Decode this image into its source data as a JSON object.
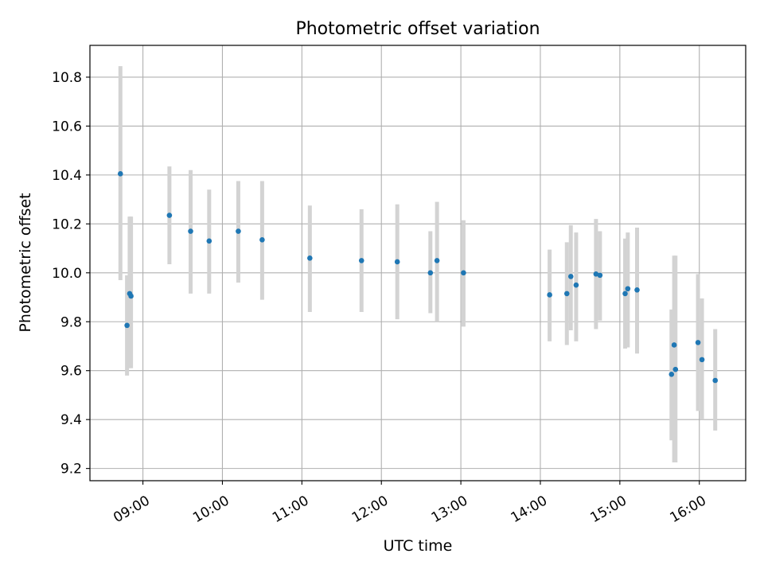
{
  "chart_data": {
    "type": "scatter",
    "title": "Photometric offset variation",
    "xlabel": "UTC time",
    "ylabel": "Photometric offset",
    "x_axis_type": "time",
    "xlim": [
      "08:20",
      "16:35"
    ],
    "ylim": [
      9.15,
      10.93
    ],
    "x_ticks": [
      "09:00",
      "10:00",
      "11:00",
      "12:00",
      "13:00",
      "14:00",
      "15:00",
      "16:00"
    ],
    "y_ticks": [
      9.2,
      9.4,
      9.6,
      9.8,
      10.0,
      10.2,
      10.4,
      10.6,
      10.8
    ],
    "grid": true,
    "legend": "none",
    "point_color": "#1f77b4",
    "errorbar_color": "#d3d3d3",
    "points": [
      {
        "x": "08:43",
        "y": 10.405,
        "low": 9.97,
        "high": 10.845
      },
      {
        "x": "08:48",
        "y": 9.785,
        "low": 9.58,
        "high": 9.99
      },
      {
        "x": "08:50",
        "y": 9.915,
        "low": 9.61,
        "high": 10.23
      },
      {
        "x": "08:51",
        "y": 9.905,
        "low": 9.61,
        "high": 10.23
      },
      {
        "x": "09:20",
        "y": 10.235,
        "low": 10.035,
        "high": 10.435
      },
      {
        "x": "09:36",
        "y": 10.17,
        "low": 9.915,
        "high": 10.42
      },
      {
        "x": "09:50",
        "y": 10.13,
        "low": 9.915,
        "high": 10.34
      },
      {
        "x": "10:12",
        "y": 10.17,
        "low": 9.96,
        "high": 10.375
      },
      {
        "x": "10:30",
        "y": 10.135,
        "low": 9.89,
        "high": 10.375
      },
      {
        "x": "11:06",
        "y": 10.06,
        "low": 9.84,
        "high": 10.275
      },
      {
        "x": "11:45",
        "y": 10.05,
        "low": 9.84,
        "high": 10.26
      },
      {
        "x": "12:12",
        "y": 10.045,
        "low": 9.81,
        "high": 10.28
      },
      {
        "x": "12:37",
        "y": 10.0,
        "low": 9.835,
        "high": 10.17
      },
      {
        "x": "12:42",
        "y": 10.05,
        "low": 9.8,
        "high": 10.29
      },
      {
        "x": "13:02",
        "y": 10.0,
        "low": 9.78,
        "high": 10.215
      },
      {
        "x": "14:07",
        "y": 9.91,
        "low": 9.72,
        "high": 10.095
      },
      {
        "x": "14:20",
        "y": 9.915,
        "low": 9.705,
        "high": 10.125
      },
      {
        "x": "14:23",
        "y": 9.985,
        "low": 9.765,
        "high": 10.195
      },
      {
        "x": "14:27",
        "y": 9.95,
        "low": 9.72,
        "high": 10.165
      },
      {
        "x": "14:42",
        "y": 9.995,
        "low": 9.77,
        "high": 10.22
      },
      {
        "x": "14:45",
        "y": 9.99,
        "low": 9.805,
        "high": 10.17
      },
      {
        "x": "15:04",
        "y": 9.915,
        "low": 9.69,
        "high": 10.14
      },
      {
        "x": "15:06",
        "y": 9.935,
        "low": 9.695,
        "high": 10.165
      },
      {
        "x": "15:13",
        "y": 9.93,
        "low": 9.67,
        "high": 10.185
      },
      {
        "x": "15:39",
        "y": 9.585,
        "low": 9.315,
        "high": 9.85
      },
      {
        "x": "15:41",
        "y": 9.705,
        "low": 9.225,
        "high": 10.07
      },
      {
        "x": "15:42",
        "y": 9.605,
        "low": 9.225,
        "high": 10.07
      },
      {
        "x": "15:59",
        "y": 9.715,
        "low": 9.435,
        "high": 9.995
      },
      {
        "x": "16:02",
        "y": 9.645,
        "low": 9.4,
        "high": 9.895
      },
      {
        "x": "16:12",
        "y": 9.56,
        "low": 9.355,
        "high": 9.77
      }
    ]
  }
}
